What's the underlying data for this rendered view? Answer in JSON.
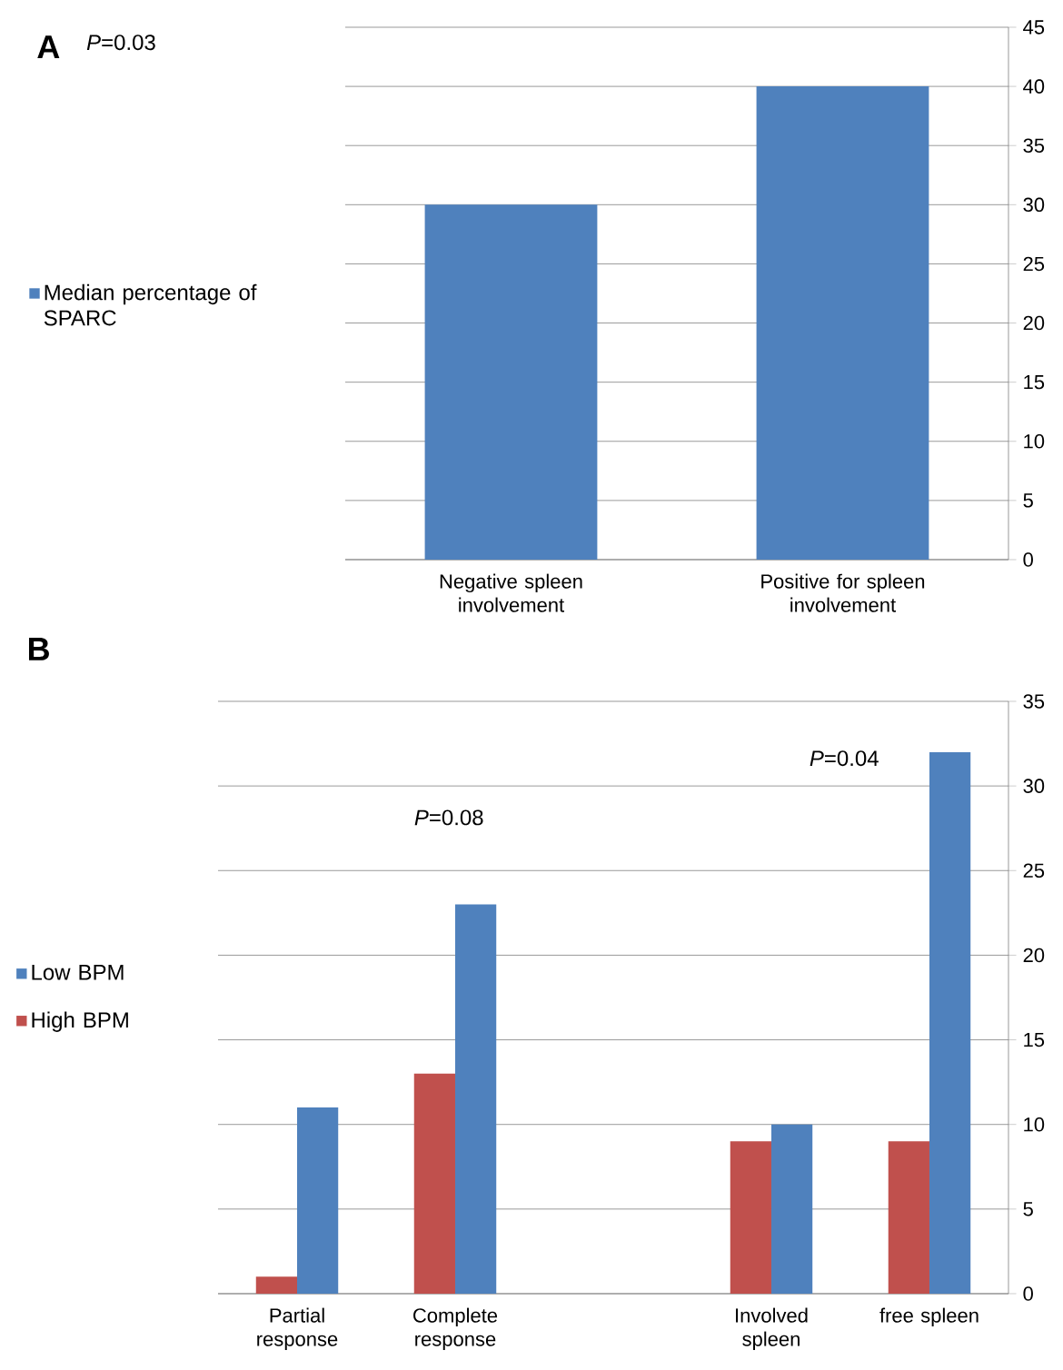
{
  "chart_data": [
    {
      "type": "bar",
      "annotations": [
        "**A**",
        "*P*=0.03"
      ],
      "categories": [
        "Negative spleen involvement",
        "Positive for spleen involvement"
      ],
      "series": [
        {
          "name": "Median percentage of SPARC",
          "color": "#4f81bd",
          "values": [
            30,
            40
          ]
        }
      ],
      "ylim": [
        0,
        45
      ],
      "yticks": [
        0,
        5,
        10,
        15,
        20,
        25,
        30,
        35,
        40,
        45
      ],
      "grid": "y",
      "legend": "left"
    },
    {
      "type": "bar",
      "title": "B",
      "annotations": [
        "*P*=0.08",
        "*P*=0.04"
      ],
      "categories": [
        "Partial response",
        "Complete response",
        null,
        "Involved spleen",
        "free spleen"
      ],
      "series": [
        {
          "name": "Low BPM",
          "color": "#4f81bd",
          "values": [
            11,
            23,
            null,
            10,
            32
          ]
        },
        {
          "name": "High BPM",
          "color": "#c0504d",
          "values": [
            1,
            13,
            null,
            9,
            9
          ]
        }
      ],
      "ylim": [
        0,
        35
      ],
      "yticks": [
        0,
        5,
        10,
        15,
        20,
        25,
        30,
        35
      ],
      "grid": "y",
      "legend": "left"
    }
  ]
}
